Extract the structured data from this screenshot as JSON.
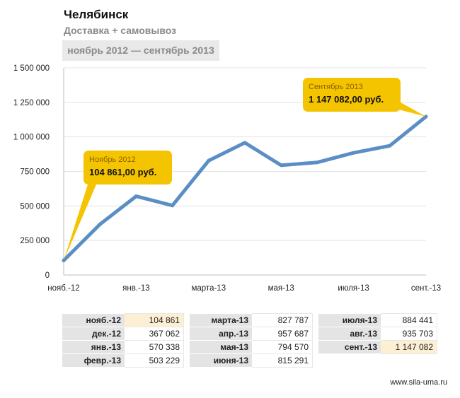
{
  "header": {
    "title": "Челябинск",
    "subtitle": "Доставка + самовывоз",
    "period": "ноябрь 2012 — сентябрь 2013"
  },
  "colors": {
    "line": "#5b8ec4",
    "callout": "#f5c400",
    "highlight": "#fdefd3",
    "label_bg": "#e4e4e4"
  },
  "chart_data": {
    "type": "line",
    "x": [
      "нояб.-12",
      "дек.-12",
      "янв.-13",
      "февр.-13",
      "марта-13",
      "апр.-13",
      "мая-13",
      "июня-13",
      "июля-13",
      "авг.-13",
      "сент.-13"
    ],
    "values": [
      104861,
      367062,
      570338,
      503229,
      827787,
      957687,
      794570,
      815291,
      884441,
      935703,
      1147082
    ],
    "x_tick_labels": [
      "нояб.-12",
      "янв.-13",
      "марта-13",
      "мая-13",
      "июля-13",
      "сент.-13"
    ],
    "y_ticks": [
      0,
      250000,
      500000,
      750000,
      1000000,
      1250000,
      1500000
    ],
    "y_tick_labels": [
      "0",
      "250 000",
      "500 000",
      "750 000",
      "1 000 000",
      "1 250 000",
      "1 500 000"
    ],
    "ylim": [
      0,
      1500000
    ],
    "grid": true,
    "title": "",
    "xlabel": "",
    "ylabel": "",
    "annotations": [
      {
        "point_index": 0,
        "label": "Ноябрь 2012",
        "value_label": "104 861,00 руб."
      },
      {
        "point_index": 10,
        "label": "Сентябрь 2013",
        "value_label": "1 147 082,00 руб."
      }
    ]
  },
  "table": {
    "columns": [
      [
        {
          "label": "нояб.-12",
          "value": "104 861",
          "highlight": true
        },
        {
          "label": "дек.-12",
          "value": "367 062",
          "highlight": false
        },
        {
          "label": "янв.-13",
          "value": "570 338",
          "highlight": false
        },
        {
          "label": "февр.-13",
          "value": "503 229",
          "highlight": false
        }
      ],
      [
        {
          "label": "марта-13",
          "value": "827 787",
          "highlight": false
        },
        {
          "label": "апр.-13",
          "value": "957 687",
          "highlight": false
        },
        {
          "label": "мая-13",
          "value": "794 570",
          "highlight": false
        },
        {
          "label": "июня-13",
          "value": "815 291",
          "highlight": false
        }
      ],
      [
        {
          "label": "июля-13",
          "value": "884 441",
          "highlight": false
        },
        {
          "label": "авг.-13",
          "value": "935 703",
          "highlight": false
        },
        {
          "label": "сент.-13",
          "value": "1 147 082",
          "highlight": true
        }
      ]
    ]
  },
  "footer": "www.sila-uma.ru"
}
